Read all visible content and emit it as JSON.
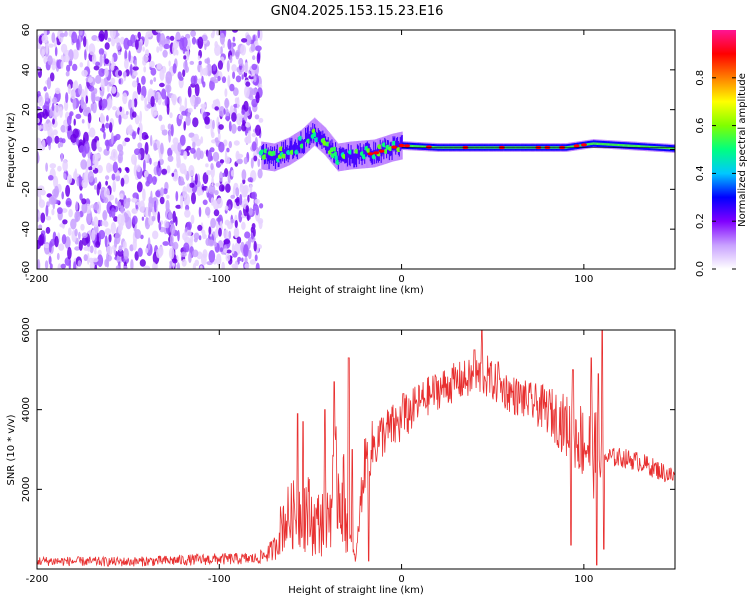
{
  "title": "GN04.2025.153.15.23.E16",
  "chart_data": [
    {
      "type": "heatmap",
      "name": "spectrogram",
      "xlabel": "Height of straight line (km)",
      "ylabel": "Frequency (Hz)",
      "xlim": [
        -200,
        150
      ],
      "ylim": [
        -60,
        60
      ],
      "x_ticks": [
        -200,
        -100,
        0,
        100
      ],
      "x_tick_labels": [
        "-200",
        "-100",
        "0",
        "100"
      ],
      "y_ticks": [
        -60,
        -40,
        -20,
        0,
        20,
        40,
        60
      ],
      "y_tick_labels": [
        "-60",
        "-40",
        "-20",
        "0",
        "20",
        "40",
        "60"
      ],
      "colorbar": {
        "label": "Normalized spectral amplitude",
        "range": [
          0,
          1
        ],
        "ticks": [
          0.0,
          0.2,
          0.4,
          0.6,
          0.8
        ],
        "tick_labels": [
          "0.0",
          "0.2",
          "0.4",
          "0.6",
          "0.8"
        ],
        "colormap": [
          "#ffffff",
          "#c8a0ff",
          "#8000ff",
          "#0000ff",
          "#00c8ff",
          "#00ff80",
          "#80ff00",
          "#ffff00",
          "#ff8000",
          "#ff0000",
          "#ff1493"
        ]
      },
      "noise_region_x": [
        -200,
        -77
      ],
      "signal_track": [
        {
          "x": -77,
          "f": -3,
          "a": 0.35
        },
        {
          "x": -70,
          "f": -4,
          "a": 0.4
        },
        {
          "x": -62,
          "f": -1,
          "a": 0.4
        },
        {
          "x": -55,
          "f": 3,
          "a": 0.35
        },
        {
          "x": -48,
          "f": 9,
          "a": 0.4
        },
        {
          "x": -42,
          "f": 4,
          "a": 0.4
        },
        {
          "x": -35,
          "f": -4,
          "a": 0.35
        },
        {
          "x": -28,
          "f": -3,
          "a": 0.6
        },
        {
          "x": -15,
          "f": -2,
          "a": 0.8
        },
        {
          "x": -5,
          "f": 1,
          "a": 0.7
        },
        {
          "x": 0,
          "f": 2,
          "a": 0.9
        },
        {
          "x": 20,
          "f": 1,
          "a": 0.9
        },
        {
          "x": 60,
          "f": 1,
          "a": 0.9
        },
        {
          "x": 90,
          "f": 1,
          "a": 0.9
        },
        {
          "x": 105,
          "f": 3,
          "a": 0.6
        },
        {
          "x": 150,
          "f": 0.5,
          "a": 0.9
        }
      ]
    },
    {
      "type": "line",
      "name": "snr",
      "xlabel": "Height of straight line (km)",
      "ylabel": "SNR (10 * v/v)",
      "xlim": [
        -200,
        150
      ],
      "ylim": [
        0,
        6000
      ],
      "x_ticks": [
        -200,
        -100,
        0,
        100
      ],
      "x_tick_labels": [
        "-200",
        "-100",
        "0",
        "100"
      ],
      "y_ticks": [
        2000,
        4000,
        6000
      ],
      "y_tick_labels": [
        "2000",
        "4000",
        "6000"
      ],
      "color": "#e83030",
      "envelope": {
        "x": [
          -200,
          -150,
          -100,
          -80,
          -75,
          -70,
          -65,
          -58,
          -52,
          -48,
          -44,
          -40,
          -36,
          -32,
          -29,
          -27,
          -25,
          -22,
          -20,
          -17,
          -10,
          0,
          10,
          20,
          30,
          40,
          45,
          50,
          60,
          70,
          80,
          90,
          100,
          105,
          110,
          115,
          120,
          130,
          140,
          150
        ],
        "y": [
          200,
          180,
          250,
          260,
          350,
          500,
          1200,
          1400,
          1500,
          1100,
          1200,
          1400,
          2200,
          1800,
          900,
          400,
          250,
          1900,
          2700,
          3000,
          3400,
          3700,
          4200,
          4500,
          4700,
          4800,
          4900,
          4700,
          4400,
          4200,
          4000,
          3600,
          3200,
          3000,
          2800,
          2800,
          2800,
          2700,
          2500,
          2300
        ],
        "noise": [
          120,
          120,
          150,
          150,
          200,
          300,
          800,
          900,
          1100,
          800,
          900,
          1000,
          1400,
          1300,
          600,
          200,
          100,
          600,
          700,
          700,
          600,
          600,
          500,
          500,
          500,
          500,
          600,
          500,
          500,
          500,
          600,
          800,
          1000,
          1300,
          400,
          250,
          250,
          250,
          250,
          250
        ]
      },
      "spikes": [
        {
          "x": -57,
          "y": 3900
        },
        {
          "x": -54,
          "y": 3700
        },
        {
          "x": -42,
          "y": 4000
        },
        {
          "x": -37,
          "y": 4700
        },
        {
          "x": -29,
          "y": 5300
        },
        {
          "x": -27,
          "y": 3000
        },
        {
          "x": 1,
          "y": 4400
        },
        {
          "x": 44,
          "y": 6050
        },
        {
          "x": 40,
          "y": 5500
        },
        {
          "x": 53,
          "y": 5200
        },
        {
          "x": 94,
          "y": 5000
        },
        {
          "x": 104,
          "y": 5300
        },
        {
          "x": 110,
          "y": 6000
        },
        {
          "x": 108,
          "y": 4900
        }
      ],
      "dips": [
        {
          "x": -27,
          "y": 100
        },
        {
          "x": -18,
          "y": 200
        },
        {
          "x": 93,
          "y": 600
        },
        {
          "x": 107,
          "y": 100
        },
        {
          "x": 111,
          "y": 500
        }
      ]
    }
  ]
}
